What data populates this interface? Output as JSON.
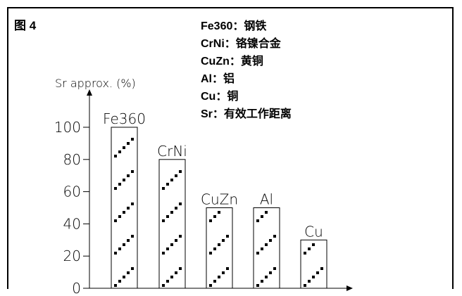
{
  "figure_label": "图 4",
  "legend": [
    "Fe360：钢铁",
    "CrNi：铬镍合金",
    "CuZn：黄铜",
    "Al：铝",
    "Cu：铜",
    "Sr：有效工作距离"
  ],
  "chart_data": {
    "type": "bar",
    "ylabel": "Sr approx. (%)",
    "xlabel": "",
    "categories": [
      "Fe360",
      "CrNi",
      "CuZn",
      "Al",
      "Cu"
    ],
    "values": [
      100,
      80,
      50,
      50,
      30
    ],
    "ylim": [
      0,
      100
    ],
    "yticks": [
      0,
      20,
      40,
      60,
      80,
      100
    ],
    "bar_pattern": "diagonal-hatch",
    "grid": false
  }
}
